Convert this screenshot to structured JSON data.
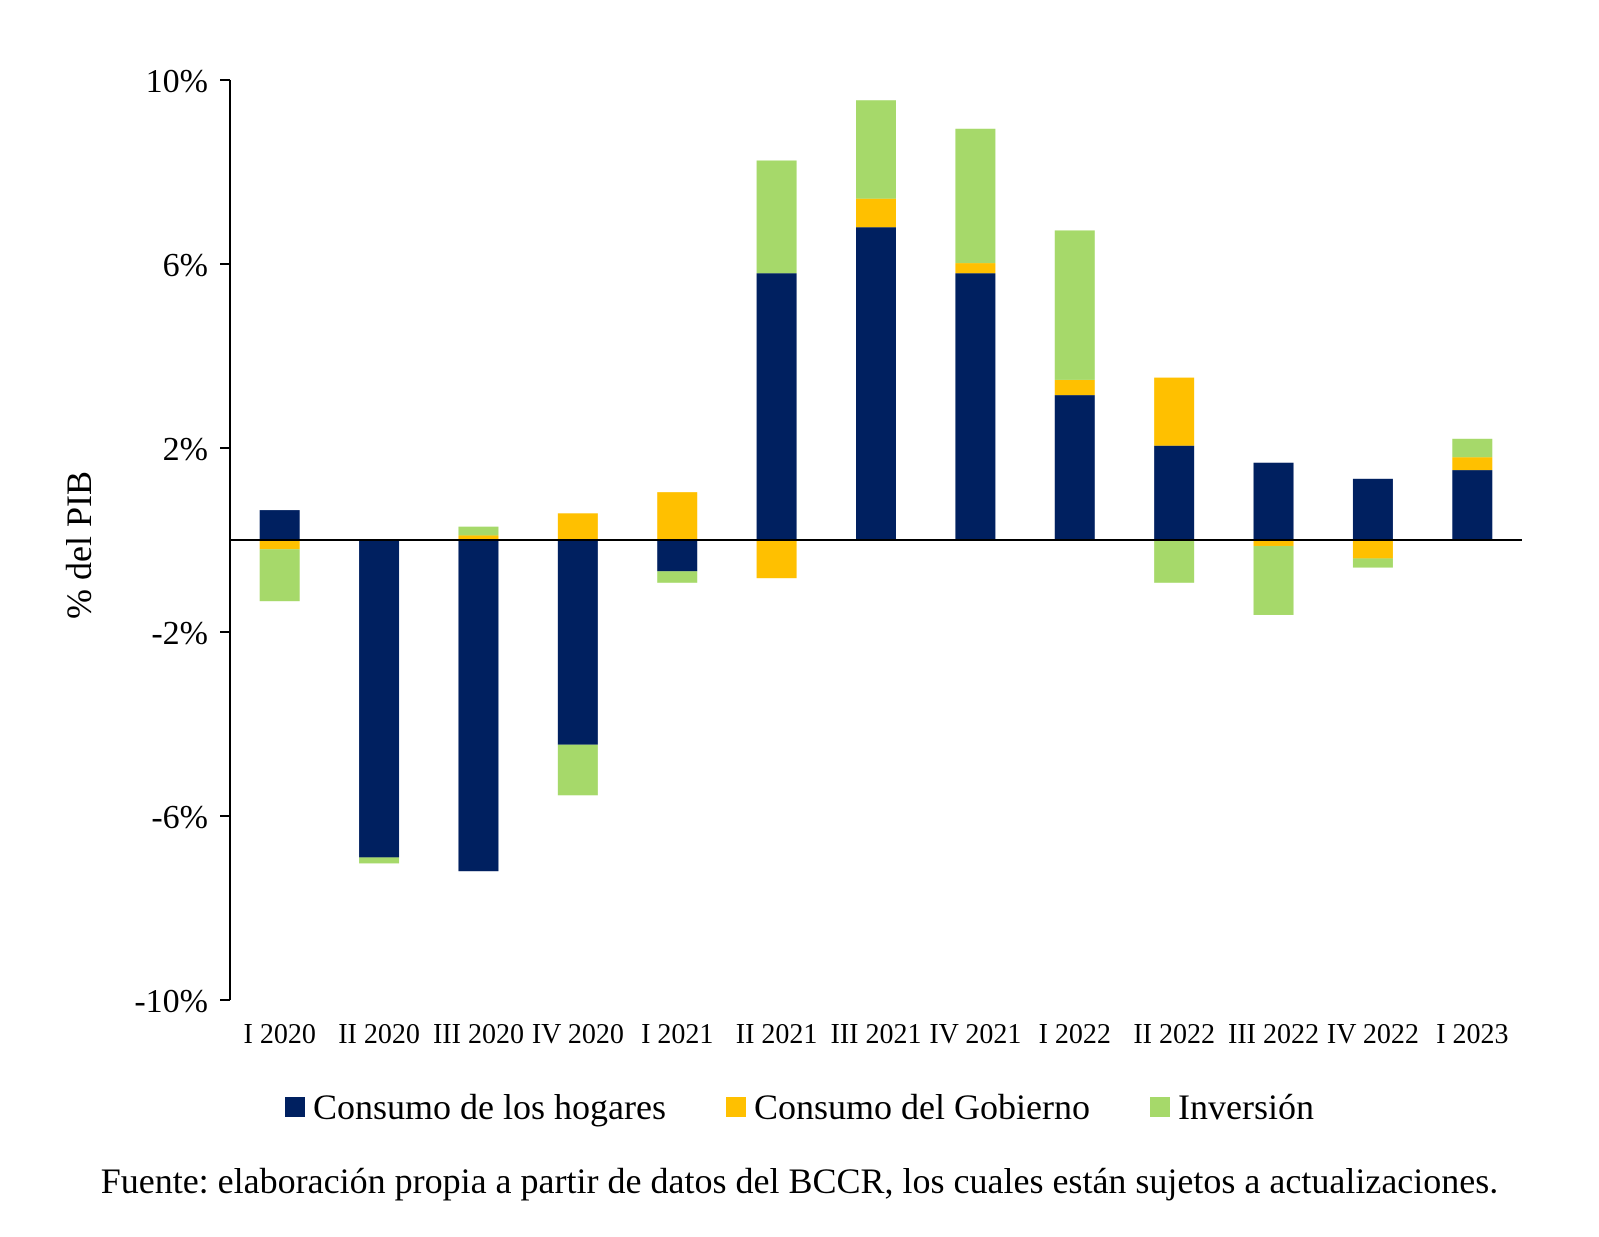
{
  "chart_data": {
    "type": "bar",
    "stacked": true,
    "title": "",
    "xlabel": "",
    "ylabel": "% del PIB",
    "ylim": [
      -10,
      10
    ],
    "yticks": [
      -10,
      -6,
      -2,
      2,
      6,
      10
    ],
    "ytick_labels": [
      "-10%",
      "-6%",
      "-2%",
      "2%",
      "6%",
      "10%"
    ],
    "categories": [
      "I 2020",
      "II 2020",
      "III 2020",
      "IV 2020",
      "I 2021",
      "II 2021",
      "III 2021",
      "IV 2021",
      "I 2022",
      "II 2022",
      "III 2022",
      "IV 2022",
      "I 2023"
    ],
    "series": [
      {
        "name": "Consumo de los hogares",
        "color": "#002060",
        "values": [
          0.65,
          -6.9,
          -7.2,
          -4.45,
          -0.68,
          5.8,
          6.8,
          5.8,
          3.15,
          2.05,
          1.68,
          1.33,
          1.52
        ]
      },
      {
        "name": "Consumo del Gobierno",
        "color": "#FFC000",
        "values": [
          -0.2,
          0.0,
          0.1,
          0.58,
          1.04,
          -0.83,
          0.62,
          0.22,
          0.33,
          1.48,
          -0.13,
          -0.4,
          0.28
        ]
      },
      {
        "name": "Inversión",
        "color": "#A6D96A",
        "values": [
          -1.13,
          -0.13,
          0.19,
          -1.1,
          -0.25,
          2.45,
          2.14,
          2.92,
          3.25,
          -0.93,
          -1.5,
          -0.2,
          0.4
        ]
      }
    ],
    "legend_position": "bottom",
    "grid": false
  },
  "source": "Fuente: elaboración propia a partir de datos del BCCR, los cuales están sujetos a actualizaciones."
}
